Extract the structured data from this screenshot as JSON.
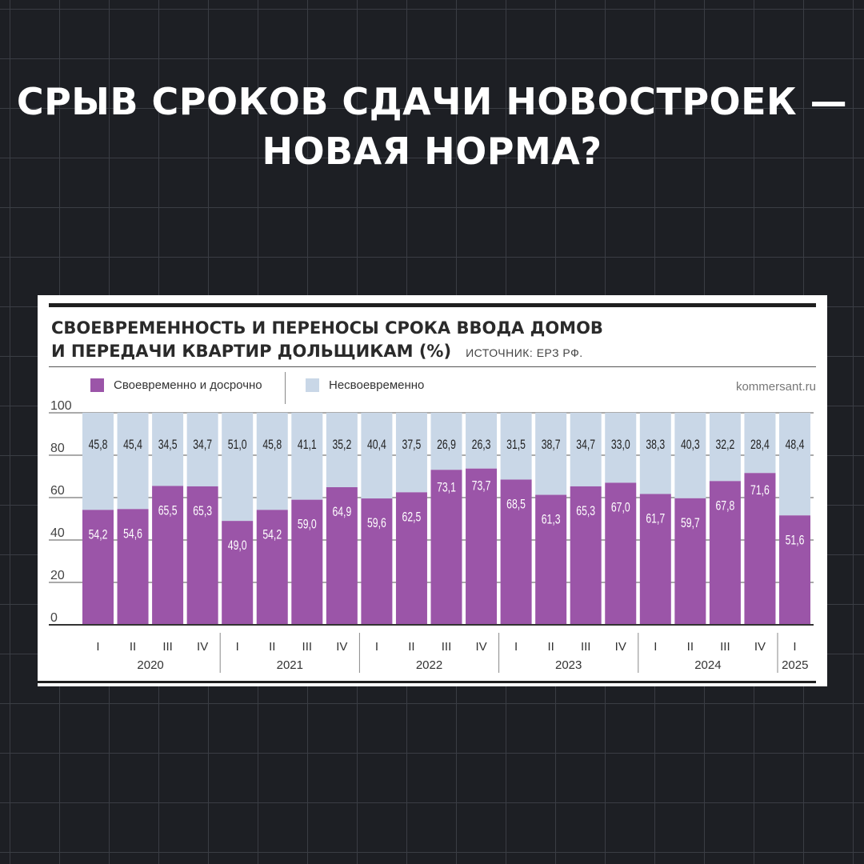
{
  "headline": {
    "line1": "СРЫВ СРОКОВ СДАЧИ НОВОСТРОЕК —",
    "line2": "НОВАЯ НОРМА?"
  },
  "card": {
    "title_line1": "СВОЕВРЕМЕННОСТЬ И ПЕРЕНОСЫ СРОКА ВВОДА ДОМОВ",
    "title_line2": "И ПЕРЕДАЧИ КВАРТИР ДОЛЬЩИКАМ (%)",
    "source": "ИСТОЧНИК: ЕРЗ РФ.",
    "site": "kommersant.ru"
  },
  "colors": {
    "on_time": "#9b55a8",
    "late": "#c9d7e7",
    "background": "#1d1f24"
  },
  "chart_data": {
    "type": "bar",
    "stacked": true,
    "ylim": [
      0,
      100
    ],
    "yticks": [
      "0",
      "20",
      "40",
      "60",
      "80",
      "100"
    ],
    "grid": true,
    "legend_position": "top-left",
    "quarters": [
      "I",
      "II",
      "III",
      "IV",
      "I",
      "II",
      "III",
      "IV",
      "I",
      "II",
      "III",
      "IV",
      "I",
      "II",
      "III",
      "IV",
      "I",
      "II",
      "III",
      "IV",
      "I"
    ],
    "years": [
      {
        "label": "2020",
        "count": 4
      },
      {
        "label": "2021",
        "count": 4
      },
      {
        "label": "2022",
        "count": 4
      },
      {
        "label": "2023",
        "count": 4
      },
      {
        "label": "2024",
        "count": 4
      },
      {
        "label": "2025",
        "count": 1
      }
    ],
    "series": [
      {
        "name": "Своевременно и досрочно",
        "color": "#9b55a8",
        "values": [
          54.2,
          54.6,
          65.5,
          65.3,
          49.0,
          54.2,
          59.0,
          64.9,
          59.6,
          62.5,
          73.1,
          73.7,
          68.5,
          61.3,
          65.3,
          67.0,
          61.7,
          59.7,
          67.8,
          71.6,
          51.6
        ],
        "labels": [
          "54,2",
          "54,6",
          "65,5",
          "65,3",
          "49,0",
          "54,2",
          "59,0",
          "64,9",
          "59,6",
          "62,5",
          "73,1",
          "73,7",
          "68,5",
          "61,3",
          "65,3",
          "67,0",
          "61,7",
          "59,7",
          "67,8",
          "71,6",
          "51,6"
        ]
      },
      {
        "name": "Несвоевременно",
        "color": "#c9d7e7",
        "values": [
          45.8,
          45.4,
          34.5,
          34.7,
          51.0,
          45.8,
          41.1,
          35.2,
          40.4,
          37.5,
          26.9,
          26.3,
          31.5,
          38.7,
          34.7,
          33.0,
          38.3,
          40.3,
          32.2,
          28.4,
          48.4
        ],
        "labels": [
          "45,8",
          "45,4",
          "34,5",
          "34,7",
          "51,0",
          "45,8",
          "41,1",
          "35,2",
          "40,4",
          "37,5",
          "26,9",
          "26,3",
          "31,5",
          "38,7",
          "34,7",
          "33,0",
          "38,3",
          "40,3",
          "32,2",
          "28,4",
          "48,4"
        ]
      }
    ]
  }
}
